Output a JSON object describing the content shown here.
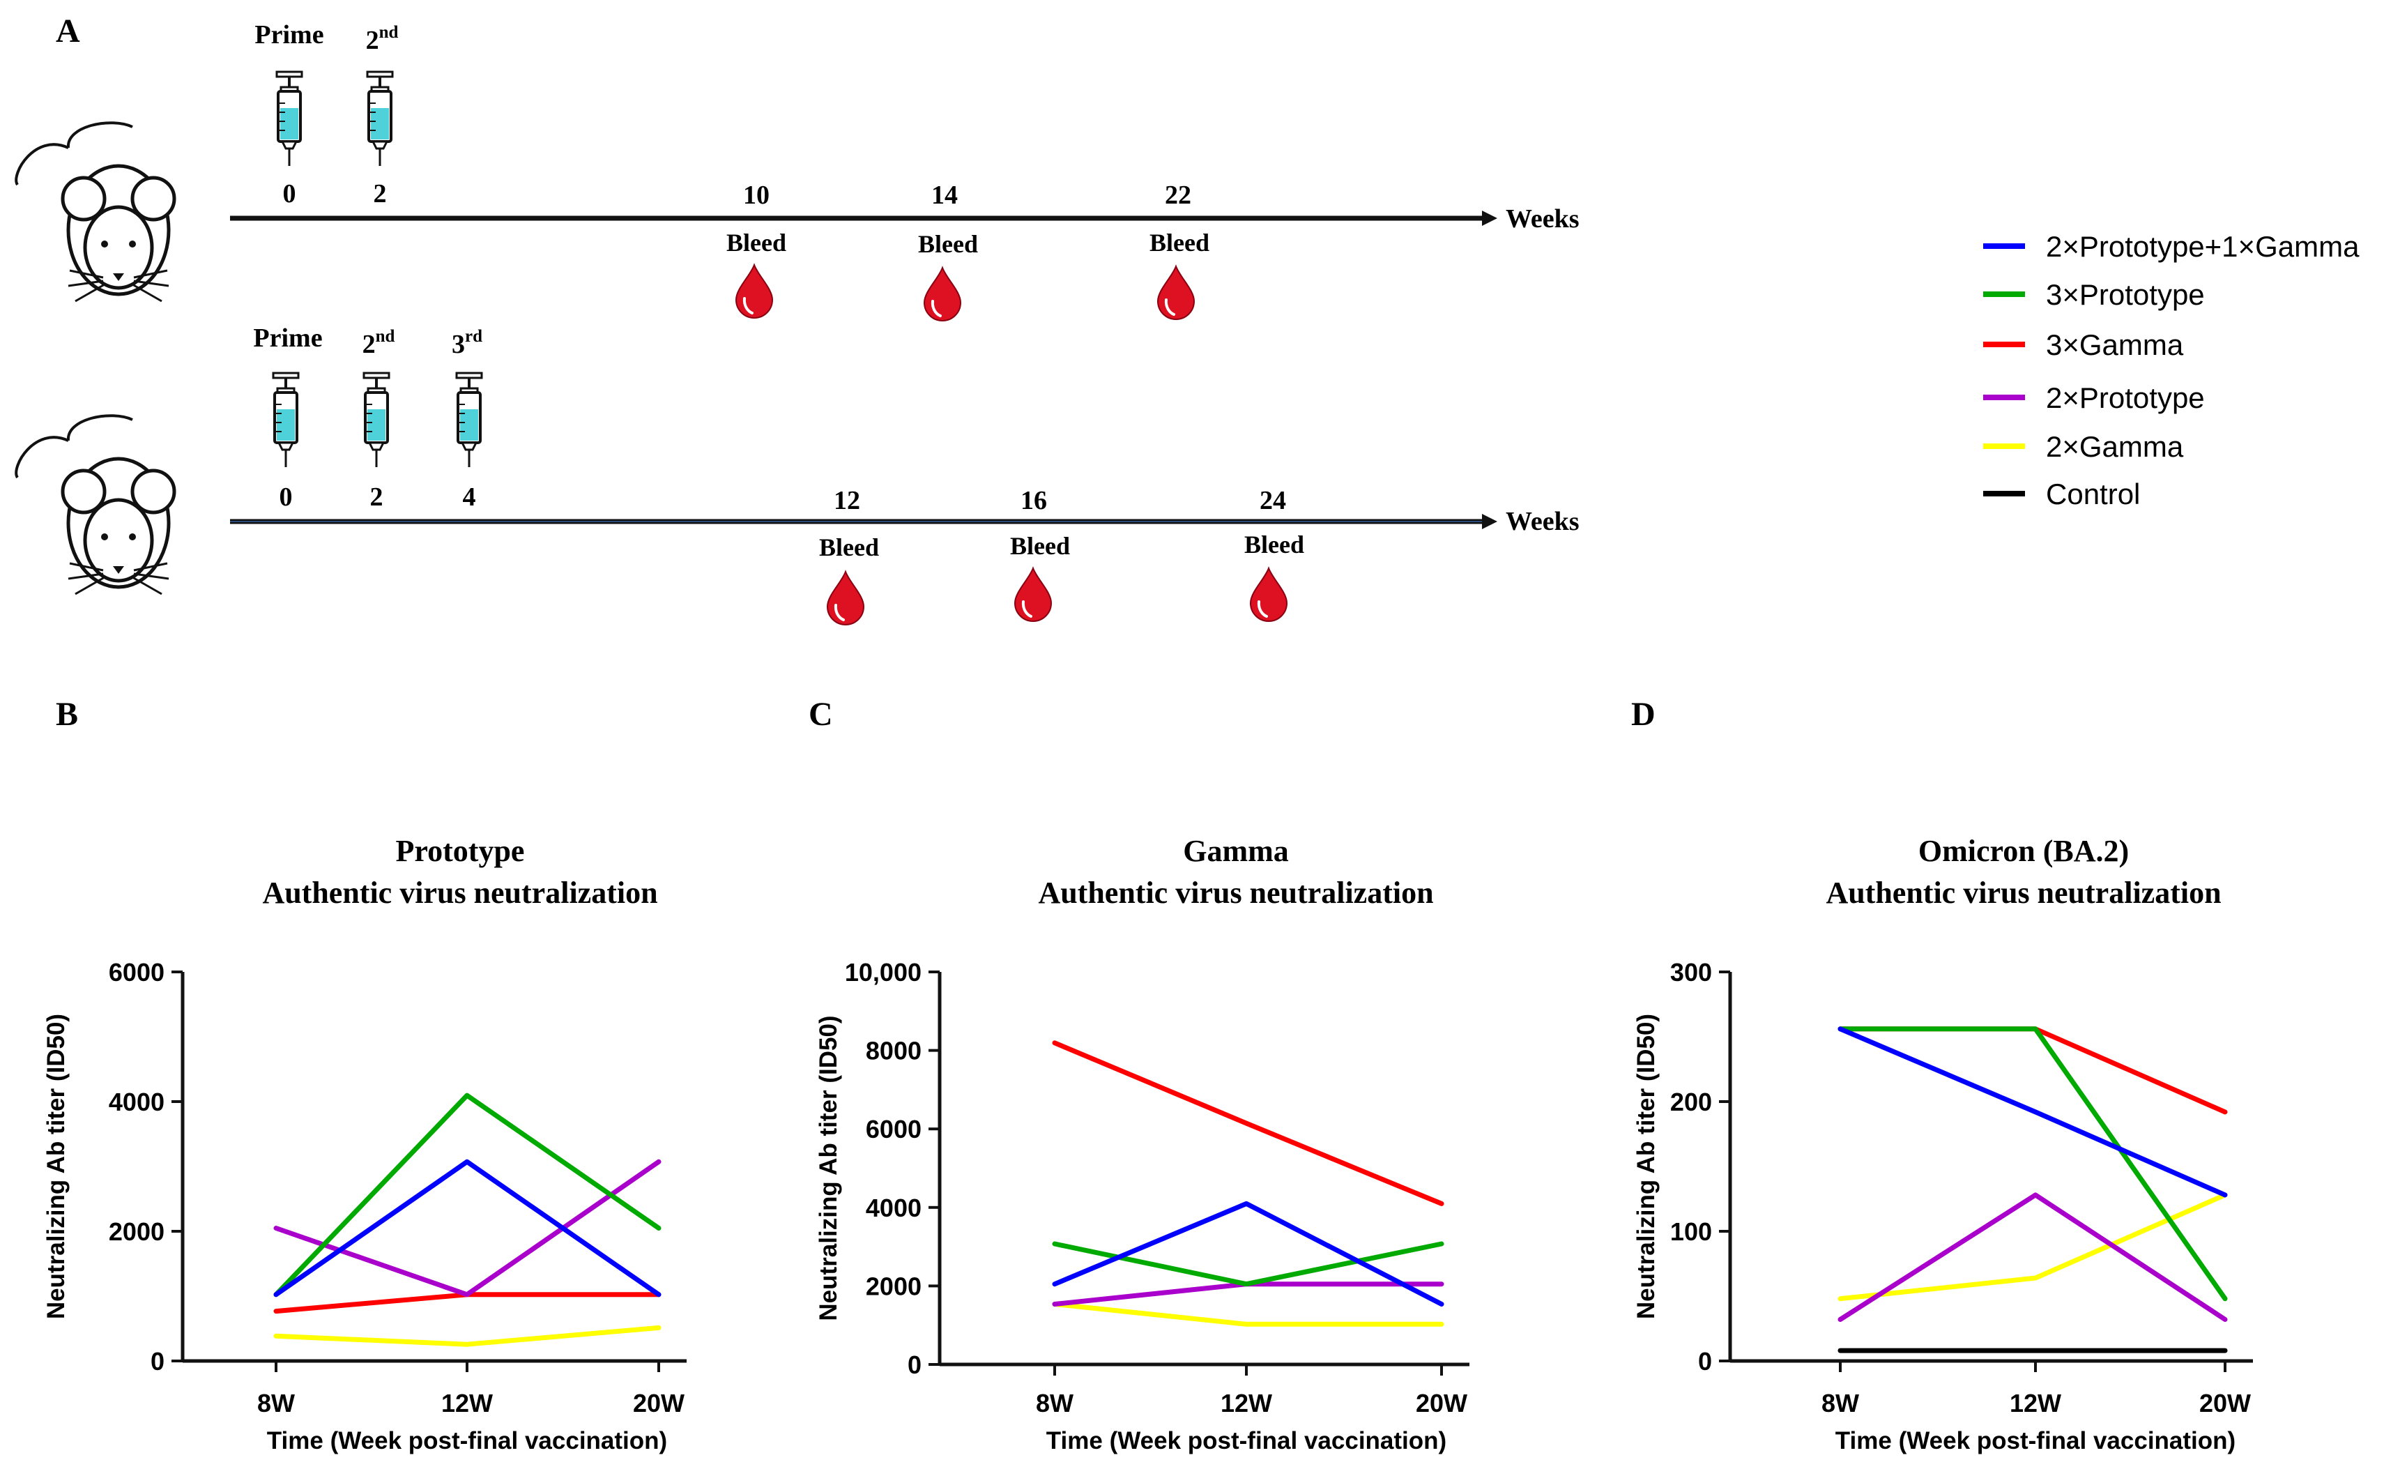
{
  "panel_a": {
    "label": "A",
    "weeks_label": "Weeks",
    "row1": {
      "injections": [
        {
          "label": "Prime",
          "week": "0"
        },
        {
          "label": "2nd",
          "week": "2"
        }
      ],
      "bleeds": [
        {
          "week": "10",
          "label": "Bleed"
        },
        {
          "week": "14",
          "label": "Bleed"
        },
        {
          "week": "22",
          "label": "Bleed"
        }
      ]
    },
    "row2": {
      "injections": [
        {
          "label": "Prime",
          "week": "0"
        },
        {
          "label": "2nd",
          "week": "2"
        },
        {
          "label": "3rd",
          "week": "4"
        }
      ],
      "bleeds": [
        {
          "week": "12",
          "label": "Bleed"
        },
        {
          "week": "16",
          "label": "Bleed"
        },
        {
          "week": "24",
          "label": "Bleed"
        }
      ]
    }
  },
  "legend": [
    {
      "name": "2×Prototype+1×Gamma",
      "color": "#0000ff"
    },
    {
      "name": "3×Prototype",
      "color": "#00aa00"
    },
    {
      "name": "3×Gamma",
      "color": "#ff0000"
    },
    {
      "name": "2×Prototype",
      "color": "#aa00cc"
    },
    {
      "name": "2×Gamma",
      "color": "#ffff00"
    },
    {
      "name": "Control",
      "color": "#000000"
    }
  ],
  "chart_data": [
    {
      "panel": "B",
      "type": "line",
      "title": "Prototype",
      "subtitle": "Authentic virus neutralization",
      "xlabel": "Time (Week post-final vaccination)",
      "ylabel": "Neutralizing Ab titer (ID50)",
      "categories": [
        "8W",
        "12W",
        "20W"
      ],
      "ylim": [
        0,
        6000
      ],
      "yticks": [
        "0",
        "2000",
        "4000",
        "6000"
      ],
      "ytick_values": [
        0,
        2000,
        4000,
        6000
      ],
      "series": [
        {
          "name": "2×Gamma",
          "values": [
            384,
            256,
            512
          ]
        },
        {
          "name": "3×Gamma",
          "values": [
            768,
            1024,
            1024
          ]
        },
        {
          "name": "2×Prototype",
          "values": [
            2048,
            1024,
            3072
          ]
        },
        {
          "name": "3×Prototype",
          "values": [
            1024,
            4096,
            2048
          ]
        },
        {
          "name": "2×Prototype+1×Gamma",
          "values": [
            1024,
            3072,
            1024
          ]
        }
      ]
    },
    {
      "panel": "C",
      "type": "line",
      "title": "Gamma",
      "subtitle": "Authentic virus neutralization",
      "xlabel": "Time (Week post-final vaccination)",
      "ylabel": "Neutralizing Ab titer (ID50)",
      "categories": [
        "8W",
        "12W",
        "20W"
      ],
      "ylim": [
        0,
        10000
      ],
      "yticks": [
        "0",
        "2000",
        "4000",
        "6000",
        "8000",
        "10,000"
      ],
      "ytick_values": [
        0,
        2000,
        4000,
        6000,
        8000,
        10000
      ],
      "series": [
        {
          "name": "2×Gamma",
          "values": [
            1536,
            1024,
            1024
          ]
        },
        {
          "name": "2×Prototype",
          "values": [
            1536,
            2048,
            2048
          ]
        },
        {
          "name": "3×Prototype",
          "values": [
            3072,
            2048,
            3072
          ]
        },
        {
          "name": "2×Prototype+1×Gamma",
          "values": [
            2048,
            4096,
            1536
          ]
        },
        {
          "name": "3×Gamma",
          "values": [
            8192,
            6144,
            4096
          ]
        }
      ]
    },
    {
      "panel": "D",
      "type": "line",
      "title": "Omicron (BA.2)",
      "subtitle": "Authentic virus neutralization",
      "xlabel": "Time (Week post-final vaccination)",
      "ylabel": "Neutralizing Ab titer (ID50)",
      "categories": [
        "8W",
        "12W",
        "20W"
      ],
      "ylim": [
        0,
        300
      ],
      "yticks": [
        "0",
        "100",
        "200",
        "300"
      ],
      "ytick_values": [
        0,
        100,
        200,
        300
      ],
      "series": [
        {
          "name": "Control",
          "values": [
            8,
            8,
            8
          ]
        },
        {
          "name": "2×Gamma",
          "values": [
            48,
            64,
            128
          ]
        },
        {
          "name": "2×Prototype",
          "values": [
            32,
            128,
            32
          ]
        },
        {
          "name": "3×Gamma",
          "values": [
            256,
            256,
            192
          ]
        },
        {
          "name": "3×Prototype",
          "values": [
            256,
            256,
            48
          ]
        },
        {
          "name": "2×Prototype+1×Gamma",
          "values": [
            256,
            192,
            128
          ]
        }
      ]
    }
  ]
}
